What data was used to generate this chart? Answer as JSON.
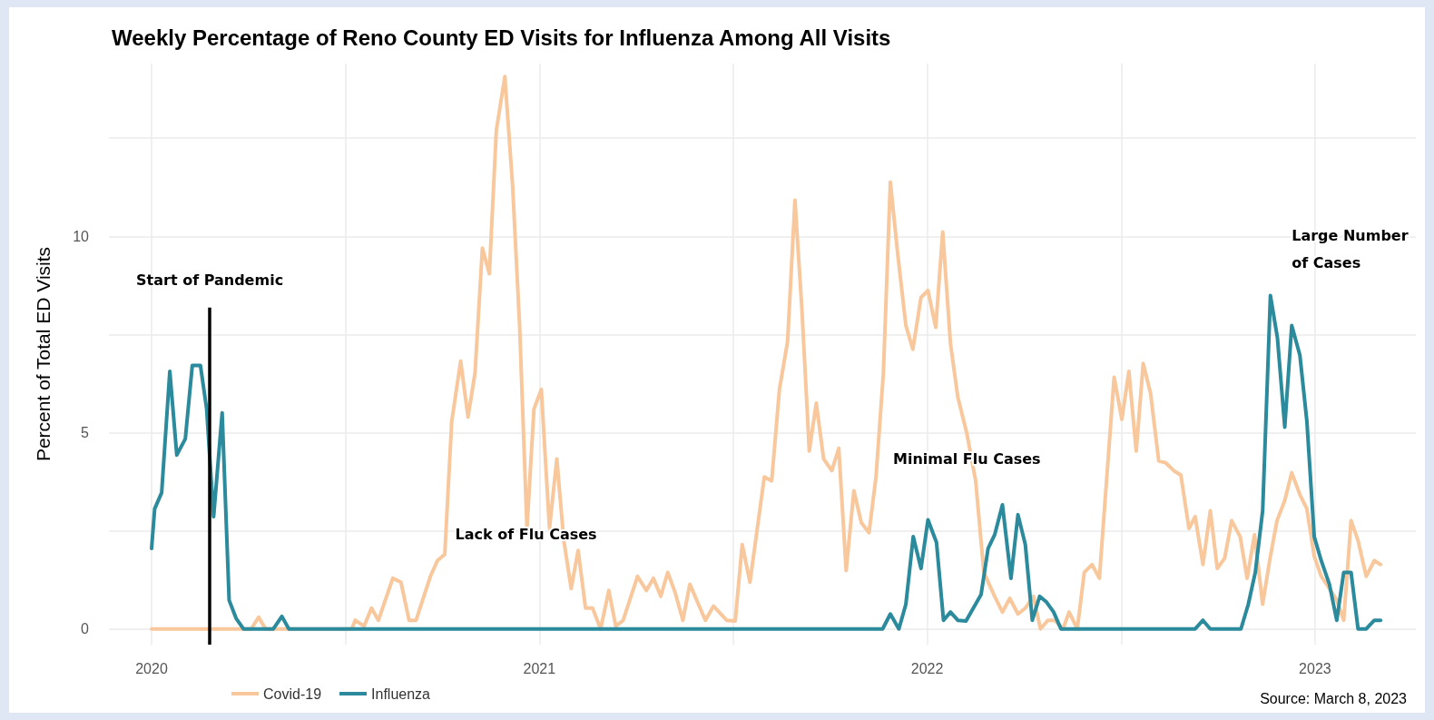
{
  "chart_data": {
    "type": "line",
    "title": "Weekly Percentage of Reno County ED Visits for Influenza Among All Visits",
    "ylabel": "Percent of Total ED Visits",
    "xlim": [
      2019.89,
      2023.26
    ],
    "xticks": [
      2020,
      {
        "value": 2020.5,
        "label": null
      },
      2021,
      {
        "value": 2021.5,
        "label": null
      },
      2022,
      {
        "value": 2022.5,
        "label": null
      },
      2023
    ],
    "ylim": [
      -0.4,
      14.4
    ],
    "yticks": [
      0,
      {
        "value": 2.5,
        "label": null
      },
      5,
      {
        "value": 7.5,
        "label": null
      },
      10,
      {
        "value": 12.5,
        "label": null
      }
    ],
    "grid": true,
    "legend": "bottom left",
    "marker": "none",
    "line_style": "solid",
    "series": [
      {
        "name": "Covid-19",
        "color": "#f8c79c",
        "x": [
          2020.0,
          2020.257,
          2020.276,
          2020.294,
          2020.516,
          2020.525,
          2020.548,
          2020.567,
          2020.585,
          2020.622,
          2020.643,
          2020.664,
          2020.682,
          2020.719,
          2020.737,
          2020.756,
          2020.774,
          2020.797,
          2020.816,
          2020.834,
          2020.853,
          2020.871,
          2020.889,
          2020.911,
          2020.931,
          2020.949,
          2020.968,
          2020.986,
          2021.005,
          2021.026,
          2021.045,
          2021.063,
          2021.082,
          2021.1,
          2021.119,
          2021.137,
          2021.158,
          2021.179,
          2021.197,
          2021.216,
          2021.253,
          2021.276,
          2021.294,
          2021.313,
          2021.331,
          2021.35,
          2021.37,
          2021.388,
          2021.428,
          2021.449,
          2021.483,
          2021.505,
          2021.523,
          2021.543,
          2021.58,
          2021.599,
          2021.619,
          2021.64,
          2021.659,
          2021.677,
          2021.696,
          2021.714,
          2021.733,
          2021.754,
          2021.772,
          2021.791,
          2021.811,
          2021.83,
          2021.85,
          2021.868,
          2021.887,
          2021.905,
          2021.924,
          2021.945,
          2021.963,
          2021.984,
          2022.002,
          2022.022,
          2022.04,
          2022.06,
          2022.079,
          2022.102,
          2022.125,
          2022.146,
          2022.174,
          2022.194,
          2022.213,
          2022.234,
          2022.253,
          2022.274,
          2022.292,
          2022.311,
          2022.329,
          2022.35,
          2022.366,
          2022.387,
          2022.405,
          2022.425,
          2022.444,
          2022.482,
          2022.502,
          2022.52,
          2022.539,
          2022.557,
          2022.576,
          2022.597,
          2022.615,
          2022.636,
          2022.654,
          2022.675,
          2022.691,
          2022.711,
          2022.73,
          2022.748,
          2022.767,
          2022.785,
          2022.807,
          2022.825,
          2022.844,
          2022.865,
          2022.883,
          2022.902,
          2022.922,
          2022.94,
          2022.961,
          2022.979,
          2022.998,
          2023.016,
          2023.037,
          2023.056,
          2023.074,
          2023.093,
          2023.111,
          2023.132,
          2023.153,
          2023.169
        ],
        "values": [
          0,
          0,
          0.3,
          0,
          0,
          0.22,
          0.07,
          0.53,
          0.22,
          1.29,
          1.19,
          0.22,
          0.22,
          1.34,
          1.74,
          1.9,
          5.29,
          6.82,
          5.4,
          6.51,
          9.7,
          9.05,
          12.7,
          14.07,
          11.28,
          7.73,
          2.56,
          5.6,
          6.1,
          2.56,
          4.33,
          2.25,
          1.03,
          2.0,
          0.53,
          0.53,
          0,
          0.98,
          0.07,
          0.22,
          1.34,
          0.98,
          1.29,
          0.83,
          1.44,
          0.93,
          0.22,
          1.14,
          0.22,
          0.58,
          0.22,
          0.2,
          2.15,
          1.19,
          3.87,
          3.77,
          6.1,
          7.32,
          10.92,
          8.13,
          4.53,
          5.75,
          4.33,
          4.03,
          4.6,
          1.49,
          3.52,
          2.71,
          2.45,
          3.87,
          6.51,
          11.38,
          9.55,
          7.73,
          7.12,
          8.44,
          8.62,
          7.68,
          10.11,
          7.27,
          5.9,
          4.99,
          3.77,
          1.44,
          0.83,
          0.43,
          0.78,
          0.38,
          0.53,
          0.83,
          0,
          0.22,
          0.22,
          0,
          0.43,
          0,
          1.44,
          1.64,
          1.29,
          6.41,
          5.34,
          6.56,
          4.53,
          6.76,
          6.0,
          4.28,
          4.23,
          4.03,
          3.92,
          2.56,
          2.86,
          1.64,
          3.01,
          1.54,
          1.8,
          2.76,
          2.35,
          1.29,
          2.4,
          0.63,
          1.74,
          2.76,
          3.27,
          3.98,
          3.42,
          3.06,
          1.85,
          1.34,
          1.03,
          0.73,
          0.22,
          2.76,
          2.25,
          1.34,
          1.74,
          1.64
        ]
      },
      {
        "name": "Influenza",
        "color": "#2b8a9c",
        "x": [
          2020.0,
          2020.008,
          2020.026,
          2020.047,
          2020.065,
          2020.087,
          2020.105,
          2020.126,
          2020.142,
          2020.16,
          2020.182,
          2020.2,
          2020.218,
          2020.237,
          2020.314,
          2020.336,
          2020.354,
          2021.885,
          2021.905,
          2021.927,
          2021.945,
          2021.964,
          2021.984,
          2022.002,
          2022.024,
          2022.042,
          2022.06,
          2022.079,
          2022.1,
          2022.139,
          2022.157,
          2022.174,
          2022.194,
          2022.216,
          2022.234,
          2022.253,
          2022.271,
          2022.29,
          2022.308,
          2022.326,
          2022.345,
          2022.691,
          2022.711,
          2022.73,
          2022.809,
          2022.828,
          2022.846,
          2022.865,
          2022.885,
          2022.903,
          2022.922,
          2022.94,
          2022.961,
          2022.979,
          2022.998,
          2023.016,
          2023.037,
          2023.056,
          2023.074,
          2023.093,
          2023.111,
          2023.132,
          2023.153,
          2023.169
        ],
        "values": [
          2.05,
          3.06,
          3.47,
          6.56,
          4.43,
          4.84,
          6.71,
          6.71,
          5.6,
          2.86,
          5.5,
          0.73,
          0.27,
          0,
          0,
          0.32,
          0,
          0,
          0.38,
          0,
          0.63,
          2.35,
          1.54,
          2.78,
          2.2,
          0.22,
          0.43,
          0.22,
          0.2,
          0.88,
          2.05,
          2.4,
          3.16,
          1.29,
          2.91,
          2.15,
          0.22,
          0.83,
          0.68,
          0.43,
          0,
          0,
          0.22,
          0,
          0,
          0.63,
          1.44,
          3.01,
          8.49,
          7.42,
          5.14,
          7.73,
          6.97,
          5.29,
          2.35,
          1.74,
          1.14,
          0.22,
          1.44,
          1.44,
          0,
          0,
          0.22,
          0.22
        ]
      }
    ],
    "ref_lines": [
      {
        "axis": "x",
        "value": 2020.15,
        "label": "Start of Pandemic",
        "color": "#000000",
        "line_style": "solid"
      }
    ],
    "annotations": [
      "Lack of Flu Cases",
      "Minimal Flu Cases",
      "Large Number\nof Cases",
      "Source: March 8, 2023"
    ]
  }
}
